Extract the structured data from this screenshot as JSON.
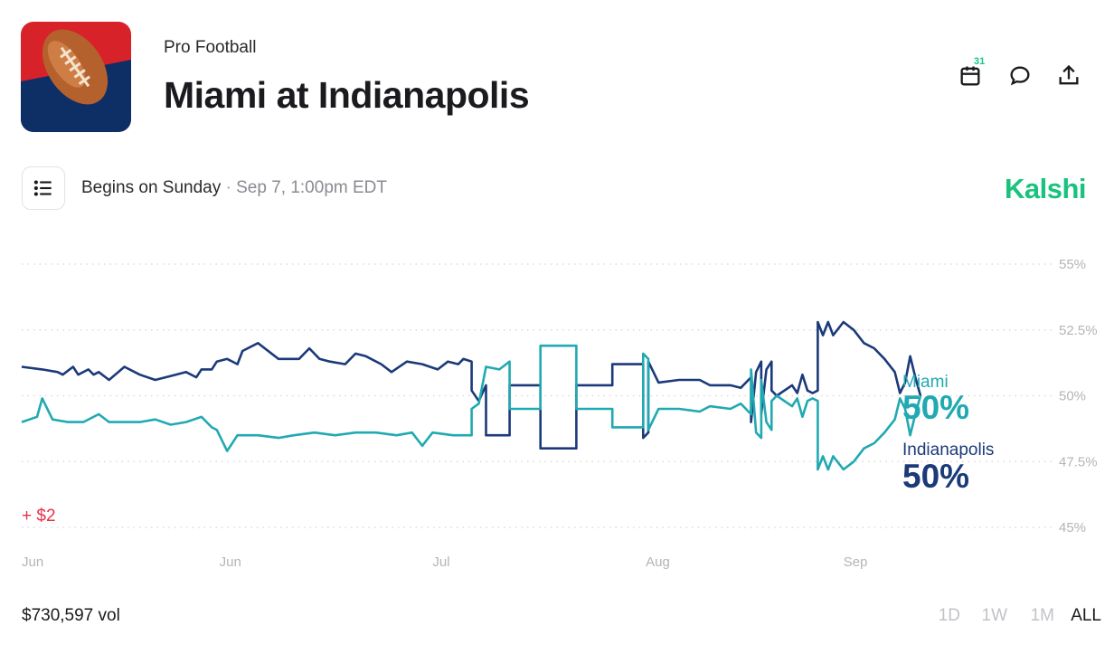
{
  "header": {
    "category": "Pro Football",
    "title": "Miami at Indianapolis",
    "calendar_count": "31"
  },
  "subheader": {
    "begins": "Begins on Sunday",
    "separator": "·",
    "date": "Sep 7, 1:00pm EDT",
    "brand": "Kalshi"
  },
  "legend": {
    "miami_name": "Miami",
    "miami_value": "50%",
    "indianapolis_name": "Indianapolis",
    "indianapolis_value": "50%"
  },
  "delta": "+ $2",
  "footer": {
    "volume": "$730,597 vol",
    "ranges": [
      "1D",
      "1W",
      "1M",
      "ALL"
    ],
    "active_range": "ALL"
  },
  "colors": {
    "miami": "#21a9b2",
    "indianapolis": "#1b3a7a",
    "brand": "#19c27d",
    "delta": "#e8304a"
  },
  "chart_data": {
    "type": "line",
    "x_labels": [
      "Jun",
      "Jun",
      "Jul",
      "Aug",
      "Sep"
    ],
    "x_label_positions": [
      0,
      0.1925,
      0.4,
      0.6075,
      0.8
    ],
    "ylim": [
      44.5,
      55.5
    ],
    "y_ticks": [
      55,
      52.5,
      50,
      47.5,
      45
    ],
    "y_tick_labels": [
      "55%",
      "52.5%",
      "50%",
      "47.5%",
      "45%"
    ],
    "grid": "dotted-horizontal",
    "series": [
      {
        "name": "Indianapolis",
        "color": "#1b3a7a",
        "points": [
          [
            0,
            51.1
          ],
          [
            0.02,
            51.0
          ],
          [
            0.035,
            50.9
          ],
          [
            0.04,
            50.8
          ],
          [
            0.05,
            51.1
          ],
          [
            0.055,
            50.8
          ],
          [
            0.065,
            51.0
          ],
          [
            0.07,
            50.8
          ],
          [
            0.075,
            50.9
          ],
          [
            0.085,
            50.6
          ],
          [
            0.1,
            51.1
          ],
          [
            0.115,
            50.8
          ],
          [
            0.13,
            50.6
          ],
          [
            0.15,
            50.8
          ],
          [
            0.16,
            50.9
          ],
          [
            0.17,
            50.7
          ],
          [
            0.175,
            51.0
          ],
          [
            0.185,
            51.0
          ],
          [
            0.19,
            51.3
          ],
          [
            0.2,
            51.4
          ],
          [
            0.21,
            51.2
          ],
          [
            0.215,
            51.7
          ],
          [
            0.23,
            52.0
          ],
          [
            0.25,
            51.4
          ],
          [
            0.27,
            51.4
          ],
          [
            0.28,
            51.8
          ],
          [
            0.29,
            51.4
          ],
          [
            0.3,
            51.3
          ],
          [
            0.315,
            51.2
          ],
          [
            0.325,
            51.6
          ],
          [
            0.335,
            51.5
          ],
          [
            0.35,
            51.2
          ],
          [
            0.36,
            50.9
          ],
          [
            0.375,
            51.3
          ],
          [
            0.39,
            51.2
          ],
          [
            0.405,
            51.0
          ],
          [
            0.415,
            51.3
          ],
          [
            0.425,
            51.2
          ],
          [
            0.43,
            51.4
          ],
          [
            0.438,
            51.3
          ],
          [
            0.438,
            50.2
          ],
          [
            0.445,
            49.8
          ],
          [
            0.452,
            50.4
          ],
          [
            0.452,
            48.5
          ],
          [
            0.475,
            48.5
          ],
          [
            0.475,
            50.4
          ],
          [
            0.505,
            50.4
          ],
          [
            0.505,
            48.0
          ],
          [
            0.54,
            48.0
          ],
          [
            0.54,
            50.4
          ],
          [
            0.575,
            50.4
          ],
          [
            0.575,
            51.2
          ],
          [
            0.605,
            51.2
          ],
          [
            0.605,
            48.4
          ],
          [
            0.61,
            48.6
          ],
          [
            0.61,
            51.3
          ],
          [
            0.62,
            50.5
          ],
          [
            0.64,
            50.6
          ],
          [
            0.66,
            50.6
          ],
          [
            0.67,
            50.4
          ],
          [
            0.69,
            50.4
          ],
          [
            0.7,
            50.3
          ],
          [
            0.71,
            50.7
          ],
          [
            0.71,
            49.0
          ],
          [
            0.715,
            50.9
          ],
          [
            0.72,
            51.3
          ],
          [
            0.72,
            49.3
          ],
          [
            0.725,
            51.0
          ],
          [
            0.73,
            51.3
          ],
          [
            0.73,
            50.2
          ],
          [
            0.735,
            50.0
          ],
          [
            0.75,
            50.4
          ],
          [
            0.755,
            50.1
          ],
          [
            0.76,
            50.8
          ],
          [
            0.765,
            50.2
          ],
          [
            0.77,
            50.1
          ],
          [
            0.775,
            50.2
          ],
          [
            0.775,
            52.8
          ],
          [
            0.78,
            52.3
          ],
          [
            0.785,
            52.8
          ],
          [
            0.79,
            52.3
          ],
          [
            0.8,
            52.8
          ],
          [
            0.81,
            52.5
          ],
          [
            0.82,
            52.0
          ],
          [
            0.83,
            51.8
          ],
          [
            0.84,
            51.4
          ],
          [
            0.85,
            50.9
          ],
          [
            0.855,
            50.1
          ],
          [
            0.86,
            50.5
          ],
          [
            0.865,
            51.5
          ],
          [
            0.87,
            50.7
          ],
          [
            0.875,
            50.0
          ]
        ]
      },
      {
        "name": "Miami",
        "color": "#21a9b2",
        "points": [
          [
            0,
            49.0
          ],
          [
            0.015,
            49.2
          ],
          [
            0.02,
            49.9
          ],
          [
            0.03,
            49.1
          ],
          [
            0.045,
            49.0
          ],
          [
            0.06,
            49.0
          ],
          [
            0.075,
            49.3
          ],
          [
            0.085,
            49.0
          ],
          [
            0.1,
            49.0
          ],
          [
            0.115,
            49.0
          ],
          [
            0.13,
            49.1
          ],
          [
            0.145,
            48.9
          ],
          [
            0.16,
            49.0
          ],
          [
            0.175,
            49.2
          ],
          [
            0.185,
            48.8
          ],
          [
            0.19,
            48.7
          ],
          [
            0.2,
            47.9
          ],
          [
            0.21,
            48.5
          ],
          [
            0.23,
            48.5
          ],
          [
            0.25,
            48.4
          ],
          [
            0.265,
            48.5
          ],
          [
            0.285,
            48.6
          ],
          [
            0.305,
            48.5
          ],
          [
            0.325,
            48.6
          ],
          [
            0.345,
            48.6
          ],
          [
            0.365,
            48.5
          ],
          [
            0.38,
            48.6
          ],
          [
            0.39,
            48.1
          ],
          [
            0.4,
            48.6
          ],
          [
            0.42,
            48.5
          ],
          [
            0.438,
            48.5
          ],
          [
            0.438,
            49.5
          ],
          [
            0.445,
            49.7
          ],
          [
            0.452,
            51.1
          ],
          [
            0.465,
            51.0
          ],
          [
            0.475,
            51.3
          ],
          [
            0.475,
            49.5
          ],
          [
            0.505,
            49.5
          ],
          [
            0.505,
            51.9
          ],
          [
            0.54,
            51.9
          ],
          [
            0.54,
            49.5
          ],
          [
            0.575,
            49.5
          ],
          [
            0.575,
            48.8
          ],
          [
            0.605,
            48.8
          ],
          [
            0.605,
            51.6
          ],
          [
            0.61,
            51.4
          ],
          [
            0.61,
            48.7
          ],
          [
            0.62,
            49.5
          ],
          [
            0.64,
            49.5
          ],
          [
            0.66,
            49.4
          ],
          [
            0.67,
            49.6
          ],
          [
            0.69,
            49.5
          ],
          [
            0.7,
            49.7
          ],
          [
            0.71,
            49.3
          ],
          [
            0.71,
            51.0
          ],
          [
            0.715,
            48.6
          ],
          [
            0.72,
            48.4
          ],
          [
            0.72,
            50.6
          ],
          [
            0.725,
            49.0
          ],
          [
            0.73,
            48.7
          ],
          [
            0.73,
            49.8
          ],
          [
            0.735,
            50.0
          ],
          [
            0.75,
            49.6
          ],
          [
            0.755,
            49.9
          ],
          [
            0.76,
            49.2
          ],
          [
            0.765,
            49.8
          ],
          [
            0.77,
            49.9
          ],
          [
            0.775,
            49.8
          ],
          [
            0.775,
            47.2
          ],
          [
            0.78,
            47.7
          ],
          [
            0.785,
            47.2
          ],
          [
            0.79,
            47.7
          ],
          [
            0.8,
            47.2
          ],
          [
            0.81,
            47.5
          ],
          [
            0.82,
            48.0
          ],
          [
            0.83,
            48.2
          ],
          [
            0.84,
            48.6
          ],
          [
            0.85,
            49.1
          ],
          [
            0.855,
            49.9
          ],
          [
            0.86,
            49.5
          ],
          [
            0.865,
            48.5
          ],
          [
            0.87,
            49.3
          ],
          [
            0.875,
            50.0
          ]
        ]
      }
    ]
  }
}
